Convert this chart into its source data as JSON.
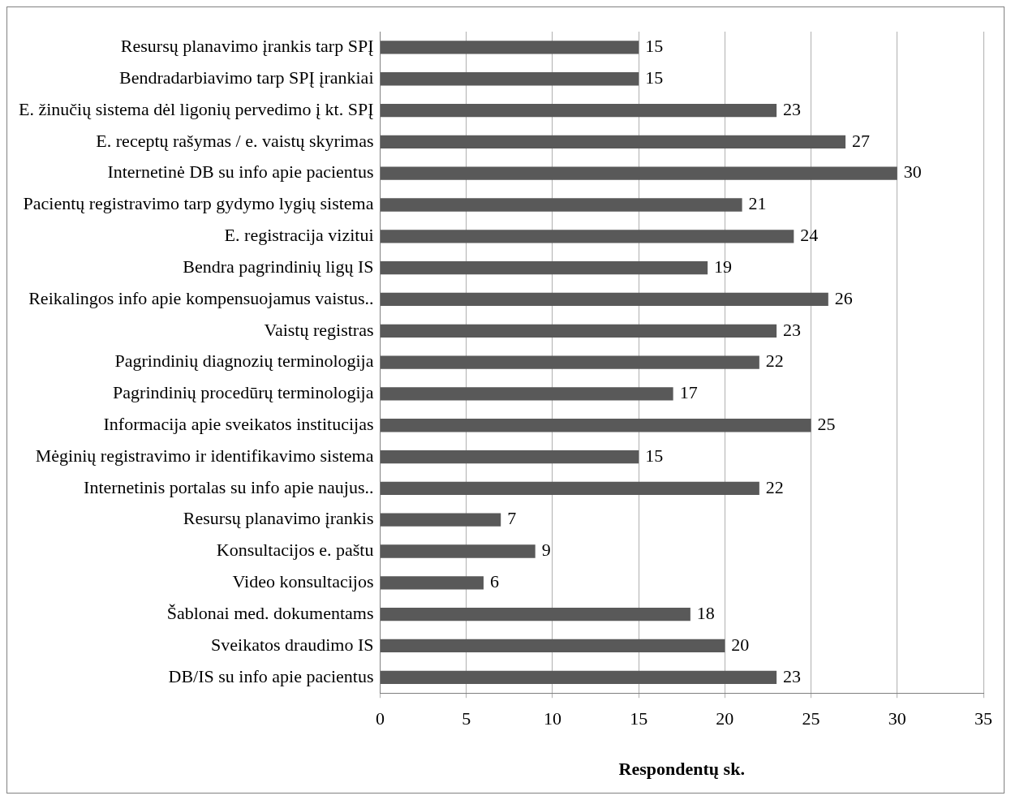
{
  "chart_data": {
    "type": "bar",
    "orientation": "horizontal",
    "xlabel": "Respondentų sk.",
    "categories": [
      "Resursų planavimo įrankis tarp SPĮ",
      "Bendradarbiavimo tarp SPĮ įrankiai",
      "E. žinučių sistema dėl ligonių pervedimo į kt. SPĮ",
      "E. receptų rašymas / e. vaistų skyrimas",
      "Internetinė DB su info apie pacientus",
      "Pacientų registravimo tarp gydymo lygių sistema",
      "E. registracija vizitui",
      "Bendra pagrindinių ligų IS",
      "Reikalingos info apie kompensuojamus vaistus..",
      "Vaistų registras",
      "Pagrindinių diagnozių terminologija",
      "Pagrindinių procedūrų terminologija",
      "Informacija apie sveikatos institucijas",
      "Mėginių registravimo ir identifikavimo sistema",
      "Internetinis portalas su info apie naujus..",
      "Resursų planavimo įrankis",
      "Konsultacijos e. paštu",
      "Video konsultacijos",
      "Šablonai med. dokumentams",
      "Sveikatos draudimo IS",
      "DB/IS su info apie pacientus"
    ],
    "values": [
      15,
      15,
      23,
      27,
      30,
      21,
      24,
      19,
      26,
      23,
      22,
      17,
      25,
      15,
      22,
      7,
      9,
      6,
      18,
      20,
      23
    ],
    "color": "#595959",
    "xlim": [
      0,
      35
    ],
    "xticks": [
      0,
      5,
      10,
      15,
      20,
      25,
      30,
      35
    ],
    "grid": "x",
    "data_labels": true,
    "legend": false
  }
}
